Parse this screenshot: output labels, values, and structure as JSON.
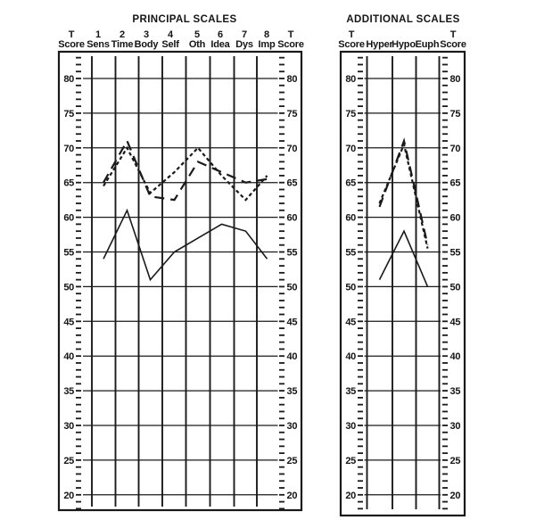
{
  "page": {
    "background": "#ffffff",
    "ink": "#1a1a1a"
  },
  "chart_data": [
    {
      "id": "principal",
      "type": "line",
      "title": "PRINCIPAL SCALES",
      "axis_label_left": [
        "T",
        "Score"
      ],
      "axis_label_right": [
        "T",
        "Score"
      ],
      "column_numbers": [
        "1",
        "2",
        "3",
        "4",
        "5",
        "6",
        "7",
        "8"
      ],
      "categories": [
        "Sens",
        "Time",
        "Body",
        "Self",
        "Oth",
        "Idea",
        "Dys",
        "Imp"
      ],
      "ylabel": "T Score",
      "ylim": [
        18,
        83
      ],
      "yticks_major": [
        20,
        25,
        30,
        35,
        40,
        45,
        50,
        55,
        60,
        65,
        70,
        75,
        80
      ],
      "ytick_minor_step": 1,
      "grid": true,
      "legend": "none",
      "series": [
        {
          "name": "solid profile",
          "style": "solid",
          "values": [
            54,
            61,
            51,
            55,
            57,
            59,
            58,
            54
          ]
        },
        {
          "name": "short-dash profile",
          "style": "short-dash",
          "values": [
            64.5,
            70,
            63.5,
            66.5,
            70,
            66,
            62.5,
            66
          ]
        },
        {
          "name": "long-dash profile",
          "style": "long-dash",
          "values": [
            65,
            71,
            63,
            62.5,
            68,
            66.5,
            65,
            65.5
          ]
        }
      ]
    },
    {
      "id": "additional",
      "type": "line",
      "title": "ADDITIONAL SCALES",
      "axis_label_left": [
        "T",
        "Score"
      ],
      "axis_label_right": [
        "T",
        "Score"
      ],
      "column_numbers": [
        "",
        "",
        ""
      ],
      "categories": [
        "Hyper",
        "Hypo",
        "Euph"
      ],
      "ylabel": "T Score",
      "ylim": [
        18,
        83
      ],
      "yticks_major": [
        20,
        25,
        30,
        35,
        40,
        45,
        50,
        55,
        60,
        65,
        70,
        75,
        80
      ],
      "ytick_minor_step": 1,
      "grid": true,
      "legend": "none",
      "series": [
        {
          "name": "solid profile",
          "style": "solid",
          "values": [
            51,
            58,
            50
          ]
        },
        {
          "name": "short-dash profile",
          "style": "short-dash",
          "values": [
            62,
            70.5,
            55.5
          ]
        },
        {
          "name": "long-dash profile",
          "style": "long-dash",
          "values": [
            61.5,
            71,
            56
          ]
        }
      ]
    }
  ]
}
